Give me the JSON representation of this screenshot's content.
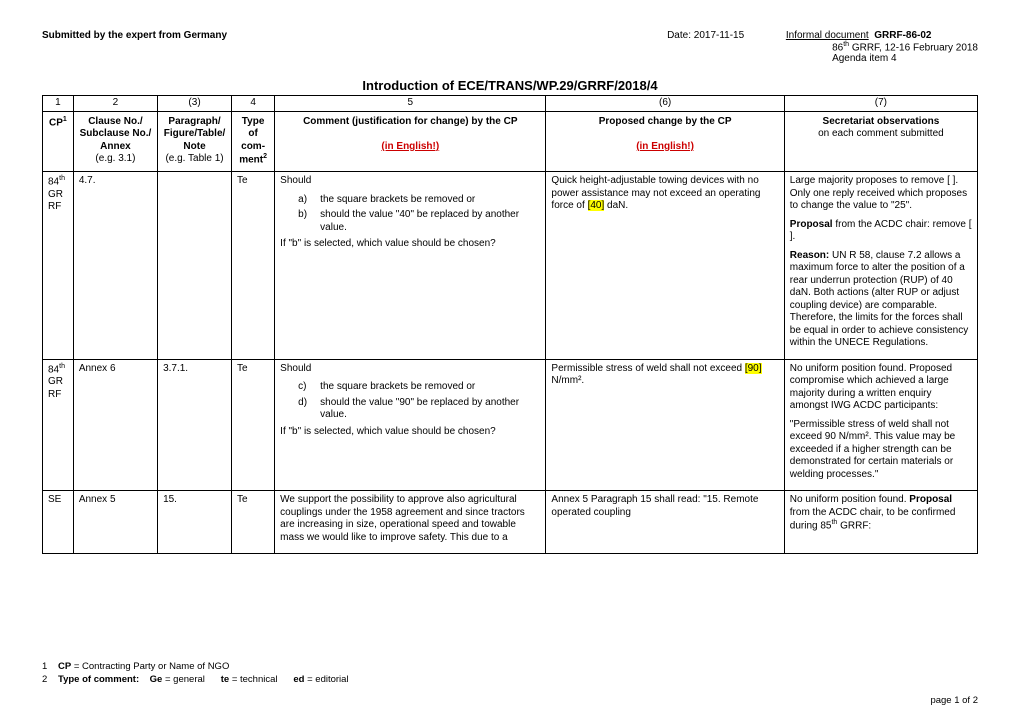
{
  "header": {
    "submitted_by": "Submitted by the expert from Germany",
    "date_label": "Date: 2017-11-15",
    "doc_label": "Informal document",
    "doc_number": "GRRF-86-02",
    "session": "86",
    "session_suffix": "th",
    "session_rest": " GRRF, 12-16 February 2018",
    "agenda": "Agenda item 4"
  },
  "title": "Introduction of ECE/TRANS/WP.29/GRRF/2018/4",
  "columns": {
    "num": [
      "1",
      "2",
      "(3)",
      "4",
      "5",
      "(6)",
      "(7)"
    ],
    "h1": {
      "sup": "1",
      "label": "CP"
    },
    "h2": {
      "l1": "Clause No./",
      "l2": "Subclause No./",
      "l3": "Annex",
      "l4": "(e.g. 3.1)"
    },
    "h3": {
      "l1": "Paragraph/",
      "l2": "Figure/Table/",
      "l3": "Note",
      "l4": "(e.g. Table 1)"
    },
    "h4": {
      "l1": "Type",
      "l2": "of",
      "l3": "com-",
      "l4": "ment",
      "sup": "2"
    },
    "h5": {
      "l1": "Comment (justification for change) by the CP",
      "l2": "(in English!)"
    },
    "h6": {
      "l1": "Proposed change by the CP",
      "l2": "(in English!)"
    },
    "h7": {
      "l1": "Secretariat observations",
      "l2": "on each comment submitted"
    }
  },
  "rows": [
    {
      "cp_a": "84",
      "cp_sup": "th",
      "cp_b": "GR",
      "cp_c": "RF",
      "clause": "4.7.",
      "para": "",
      "type": "Te",
      "comment_lead": "Should",
      "comment_items": [
        {
          "mk": "a)",
          "txt": "the square brackets be removed or"
        },
        {
          "mk": "b)",
          "txt": "should the value \"40\" be replaced by another value."
        }
      ],
      "comment_tail": "If \"b\" is selected, which value should be chosen?",
      "proposed_pre": "Quick height-adjustable towing devices with no power assistance may not exceed an operating force of ",
      "proposed_hl": "[40]",
      "proposed_post": " daN.",
      "obs": [
        {
          "pre": "",
          "bold": "",
          "txt": "Large majority proposes to remove [ ]. Only one reply received which proposes to change the value to \"25\"."
        },
        {
          "pre": "",
          "bold": "Proposal",
          "txt": " from the ACDC chair: remove [ ]."
        },
        {
          "pre": "",
          "bold": "Reason:",
          "txt": " UN R 58, clause 7.2 allows a maximum force to alter the position of a rear underrun protection (RUP) of 40 daN. Both actions (alter RUP or adjust coupling device) are comparable. Therefore, the limits for the forces shall be equal in order to achieve consistency within the UNECE Regulations."
        }
      ]
    },
    {
      "cp_a": "84",
      "cp_sup": "th",
      "cp_b": "GR",
      "cp_c": "RF",
      "clause": "Annex 6",
      "para": "3.7.1.",
      "type": "Te",
      "comment_lead": "Should",
      "comment_items": [
        {
          "mk": "c)",
          "txt": "the square brackets be removed or"
        },
        {
          "mk": "d)",
          "txt": "should the value \"90\" be replaced by another value."
        }
      ],
      "comment_tail": "If \"b\" is selected, which value should be chosen?",
      "proposed_pre": "Permissible stress of weld shall not exceed ",
      "proposed_hl": "[90]",
      "proposed_post": " N/mm².",
      "obs": [
        {
          "pre": "",
          "bold": "",
          "txt": "No uniform position found. Proposed compromise which achieved a large majority during a written enquiry amongst IWG ACDC participants:"
        },
        {
          "pre": "",
          "bold": "",
          "txt": "\"Permissible stress of weld shall not exceed 90 N/mm². This value may be exceeded if a higher strength can be demonstrated for certain materials or welding processes.\""
        }
      ]
    },
    {
      "cp_a": "SE",
      "cp_sup": "",
      "cp_b": "",
      "cp_c": "",
      "clause": "Annex 5",
      "para": "15.",
      "type": "Te",
      "comment_lead": "We support the possibility to approve also agricultural couplings under the 1958 agreement and since tractors are increasing in size, operational speed and towable mass we would like to improve safety. This due to a",
      "comment_items": [],
      "comment_tail": "",
      "proposed_pre": "Annex 5 Paragraph 15 shall read: \"15. Remote operated coupling",
      "proposed_hl": "",
      "proposed_post": "",
      "obs": [
        {
          "pre": "No uniform position found. ",
          "bold": "Proposal",
          "txt": " from the ACDC chair, to be confirmed during 85"
        }
      ],
      "obs_tail_sup": "th",
      "obs_tail_txt": " GRRF:"
    }
  ],
  "footnotes": {
    "f1": {
      "num": "1",
      "bold": "CP",
      "txt": " = Contracting Party or Name of NGO"
    },
    "f2": {
      "num": "2",
      "lead": "Type of comment:",
      "ge": "Ge",
      "ge_t": " = general",
      "te": "te",
      "te_t": " = technical",
      "ed": "ed",
      "ed_t": " = editorial"
    }
  },
  "pagenum": "page 1 of 2"
}
